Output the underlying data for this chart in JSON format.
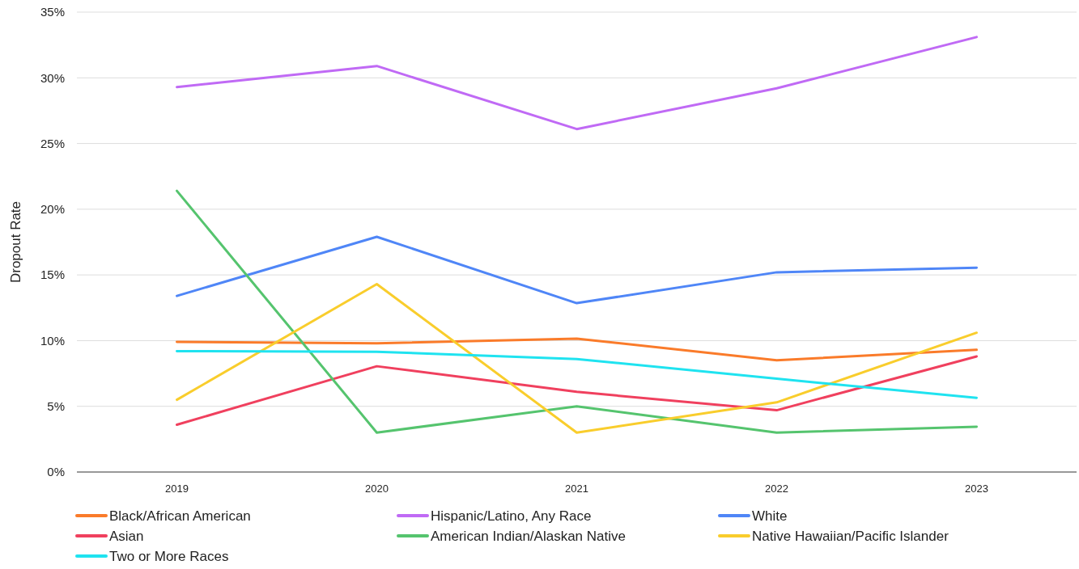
{
  "chart_data": {
    "type": "line",
    "ylabel": "Dropout Rate",
    "categories": [
      "2019",
      "2020",
      "2021",
      "2022",
      "2023"
    ],
    "ylim": [
      0,
      35
    ],
    "yticks": [
      {
        "value": 0,
        "label": "0%"
      },
      {
        "value": 5,
        "label": "5%"
      },
      {
        "value": 10,
        "label": "10%"
      },
      {
        "value": 15,
        "label": "15%"
      },
      {
        "value": 20,
        "label": "20%"
      },
      {
        "value": 25,
        "label": "25%"
      },
      {
        "value": 30,
        "label": "30%"
      },
      {
        "value": 35,
        "label": "35%"
      }
    ],
    "grid": "y",
    "legend": "bottom",
    "line_style": "solid",
    "series": [
      {
        "name": "Black/African American",
        "color": "#fa7b2a",
        "values": [
          9.9,
          9.8,
          10.15,
          8.5,
          9.3
        ]
      },
      {
        "name": "Hispanic/Latino, Any Race",
        "color": "#c06af5",
        "values": [
          29.3,
          30.9,
          26.1,
          29.2,
          33.1
        ]
      },
      {
        "name": "White",
        "color": "#4f86f7",
        "values": [
          13.4,
          17.9,
          12.85,
          15.2,
          15.55
        ]
      },
      {
        "name": "Asian",
        "color": "#f0405e",
        "values": [
          3.6,
          8.05,
          6.1,
          4.7,
          8.8
        ]
      },
      {
        "name": "American Indian/Alaskan Native",
        "color": "#55c46e",
        "values": [
          21.4,
          3.0,
          5.0,
          3.0,
          3.45
        ]
      },
      {
        "name": "Native Hawaiian/Pacific Islander",
        "color": "#f9cd2c",
        "values": [
          5.5,
          14.3,
          3.0,
          5.3,
          10.6
        ]
      },
      {
        "name": "Two or More Races",
        "color": "#1fe3f0",
        "values": [
          9.2,
          9.15,
          8.6,
          7.1,
          5.65
        ]
      }
    ]
  }
}
